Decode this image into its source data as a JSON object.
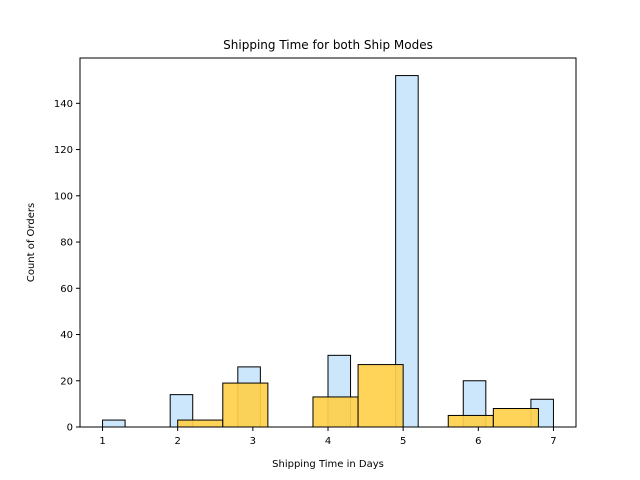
{
  "chart_data": {
    "type": "histogram",
    "title": "Shipping Time for both Ship Modes",
    "xlabel": "Shipping Time in Days",
    "ylabel": "Count of Orders",
    "xlim": [
      0.7,
      7.3
    ],
    "ylim": [
      0,
      159.6
    ],
    "xticks": [
      1,
      2,
      3,
      4,
      5,
      6,
      7
    ],
    "yticks": [
      0,
      20,
      40,
      60,
      80,
      100,
      120,
      140
    ],
    "grid": false,
    "legend": "none",
    "series": [
      {
        "color": "#cce7fb",
        "edge_color": "#000000",
        "bins": [
          {
            "x0": 1.0,
            "x1": 1.3,
            "count": 3
          },
          {
            "x0": 1.3,
            "x1": 1.6,
            "count": 0
          },
          {
            "x0": 1.6,
            "x1": 1.9,
            "count": 0
          },
          {
            "x0": 1.9,
            "x1": 2.2,
            "count": 14
          },
          {
            "x0": 2.2,
            "x1": 2.5,
            "count": 0
          },
          {
            "x0": 2.5,
            "x1": 2.8,
            "count": 0
          },
          {
            "x0": 2.8,
            "x1": 3.1,
            "count": 26
          },
          {
            "x0": 3.1,
            "x1": 3.4,
            "count": 0
          },
          {
            "x0": 3.4,
            "x1": 3.7,
            "count": 0
          },
          {
            "x0": 3.7,
            "x1": 4.0,
            "count": 0
          },
          {
            "x0": 4.0,
            "x1": 4.3,
            "count": 31
          },
          {
            "x0": 4.3,
            "x1": 4.6,
            "count": 0
          },
          {
            "x0": 4.6,
            "x1": 4.9,
            "count": 0
          },
          {
            "x0": 4.9,
            "x1": 5.2,
            "count": 152
          },
          {
            "x0": 5.2,
            "x1": 5.5,
            "count": 0
          },
          {
            "x0": 5.5,
            "x1": 5.8,
            "count": 0
          },
          {
            "x0": 5.8,
            "x1": 6.1,
            "count": 20
          },
          {
            "x0": 6.1,
            "x1": 6.4,
            "count": 0
          },
          {
            "x0": 6.4,
            "x1": 6.7,
            "count": 0
          },
          {
            "x0": 6.7,
            "x1": 7.0,
            "count": 12
          }
        ]
      },
      {
        "color": "#ffd04b",
        "edge_color": "#000000",
        "bins": [
          {
            "x0": 2.0,
            "x1": 2.6,
            "count": 3
          },
          {
            "x0": 2.6,
            "x1": 3.2,
            "count": 19
          },
          {
            "x0": 3.2,
            "x1": 3.8,
            "count": 0
          },
          {
            "x0": 3.8,
            "x1": 4.4,
            "count": 13
          },
          {
            "x0": 4.4,
            "x1": 5.0,
            "count": 27
          },
          {
            "x0": 5.0,
            "x1": 5.6,
            "count": 0
          },
          {
            "x0": 5.6,
            "x1": 6.2,
            "count": 5
          },
          {
            "x0": 6.2,
            "x1": 6.8,
            "count": 8
          }
        ]
      }
    ]
  }
}
